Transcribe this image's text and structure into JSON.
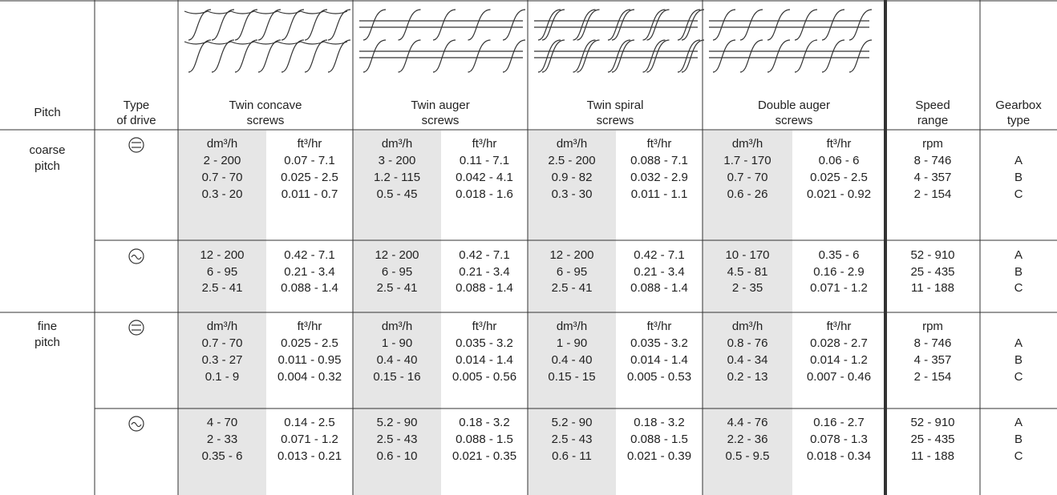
{
  "header": {
    "pitch": "Pitch",
    "drive": [
      "Type",
      "of drive"
    ],
    "screws": [
      [
        "Twin concave",
        "screws"
      ],
      [
        "Twin auger",
        "screws"
      ],
      [
        "Twin spiral",
        "screws"
      ],
      [
        "Double auger",
        "screws"
      ]
    ],
    "speed": [
      "Speed",
      "range"
    ],
    "gearbox": [
      "Gearbox",
      "type"
    ]
  },
  "groups": [
    {
      "pitch": [
        "coarse",
        "pitch"
      ],
      "rows": [
        {
          "screws": [
            {
              "dm": [
                "dm³/h",
                "2 - 200",
                "0.7 - 70",
                "0.3 - 20"
              ],
              "ft": [
                "ft³/hr",
                "0.07 - 7.1",
                "0.025 - 2.5",
                "0.011 - 0.7"
              ]
            },
            {
              "dm": [
                "dm³/h",
                "3 - 200",
                "1.2 - 115",
                "0.5 - 45"
              ],
              "ft": [
                "ft³/hr",
                "0.11 - 7.1",
                "0.042 - 4.1",
                "0.018 - 1.6"
              ]
            },
            {
              "dm": [
                "dm³/h",
                "2.5 - 200",
                "0.9 - 82",
                "0.3 - 30"
              ],
              "ft": [
                "ft³/hr",
                "0.088 - 7.1",
                "0.032 - 2.9",
                "0.011 - 1.1"
              ]
            },
            {
              "dm": [
                "dm³/h",
                "1.7 - 170",
                "0.7 - 70",
                "0.6 - 26"
              ],
              "ft": [
                "ft³/hr",
                "0.06 - 6",
                "0.025 - 2.5",
                "0.021 - 0.92"
              ]
            }
          ],
          "speed": [
            "rpm",
            "8 - 746",
            "4 - 357",
            "2 - 154"
          ],
          "gearbox": [
            "A",
            "B",
            "C"
          ]
        },
        {
          "screws": [
            {
              "dm": [
                "12 - 200",
                "6 - 95",
                "2.5 - 41"
              ],
              "ft": [
                "0.42 - 7.1",
                "0.21 - 3.4",
                "0.088 - 1.4"
              ]
            },
            {
              "dm": [
                "12 - 200",
                "6 - 95",
                "2.5 - 41"
              ],
              "ft": [
                "0.42 - 7.1",
                "0.21 - 3.4",
                "0.088 - 1.4"
              ]
            },
            {
              "dm": [
                "12 - 200",
                "6 - 95",
                "2.5 - 41"
              ],
              "ft": [
                "0.42 - 7.1",
                "0.21 - 3.4",
                "0.088 - 1.4"
              ]
            },
            {
              "dm": [
                "10 - 170",
                "4.5 - 81",
                "2 - 35"
              ],
              "ft": [
                "0.35 - 6",
                "0.16 - 2.9",
                "0.071 - 1.2"
              ]
            }
          ],
          "speed": [
            "52 - 910",
            "25 - 435",
            "11 - 188"
          ],
          "gearbox": [
            "A",
            "B",
            "C"
          ]
        }
      ]
    },
    {
      "pitch": [
        "fine",
        "pitch"
      ],
      "rows": [
        {
          "screws": [
            {
              "dm": [
                "dm³/h",
                "0.7 - 70",
                "0.3 - 27",
                "0.1 - 9"
              ],
              "ft": [
                "ft³/hr",
                "0.025 - 2.5",
                "0.011 - 0.95",
                "0.004 - 0.32"
              ]
            },
            {
              "dm": [
                "dm³/h",
                "1 - 90",
                "0.4 - 40",
                "0.15 - 16"
              ],
              "ft": [
                "ft³/hr",
                "0.035 - 3.2",
                "0.014 - 1.4",
                "0.005 - 0.56"
              ]
            },
            {
              "dm": [
                "dm³/h",
                "1 - 90",
                "0.4 - 40",
                "0.15 - 15"
              ],
              "ft": [
                "ft³/hr",
                "0.035 - 3.2",
                "0.014 - 1.4",
                "0.005 - 0.53"
              ]
            },
            {
              "dm": [
                "dm³/h",
                "0.8 - 76",
                "0.4 - 34",
                "0.2 - 13"
              ],
              "ft": [
                "ft³/hr",
                "0.028 - 2.7",
                "0.014 - 1.2",
                "0.007 - 0.46"
              ]
            }
          ],
          "speed": [
            "rpm",
            "8 - 746",
            "4 - 357",
            "2 - 154"
          ],
          "gearbox": [
            "A",
            "B",
            "C"
          ]
        },
        {
          "screws": [
            {
              "dm": [
                "4 - 70",
                "2 - 33",
                "0.35 - 6"
              ],
              "ft": [
                "0.14 - 2.5",
                "0.071 - 1.2",
                "0.013 - 0.21"
              ]
            },
            {
              "dm": [
                "5.2 - 90",
                "2.5 - 43",
                "0.6 - 10"
              ],
              "ft": [
                "0.18 - 3.2",
                "0.088 - 1.5",
                "0.021 - 0.35"
              ]
            },
            {
              "dm": [
                "5.2 - 90",
                "2.5 - 43",
                "0.6 - 11"
              ],
              "ft": [
                "0.18 - 3.2",
                "0.088 - 1.5",
                "0.021 - 0.39"
              ]
            },
            {
              "dm": [
                "4.4 - 76",
                "2.2 - 36",
                "0.5 - 9.5"
              ],
              "ft": [
                "0.16 - 2.7",
                "0.078 - 1.3",
                "0.018 - 0.34"
              ]
            }
          ],
          "speed": [
            "52 - 910",
            "25 - 435",
            "11 - 188"
          ],
          "gearbox": [
            "A",
            "B",
            "C"
          ]
        }
      ]
    }
  ]
}
